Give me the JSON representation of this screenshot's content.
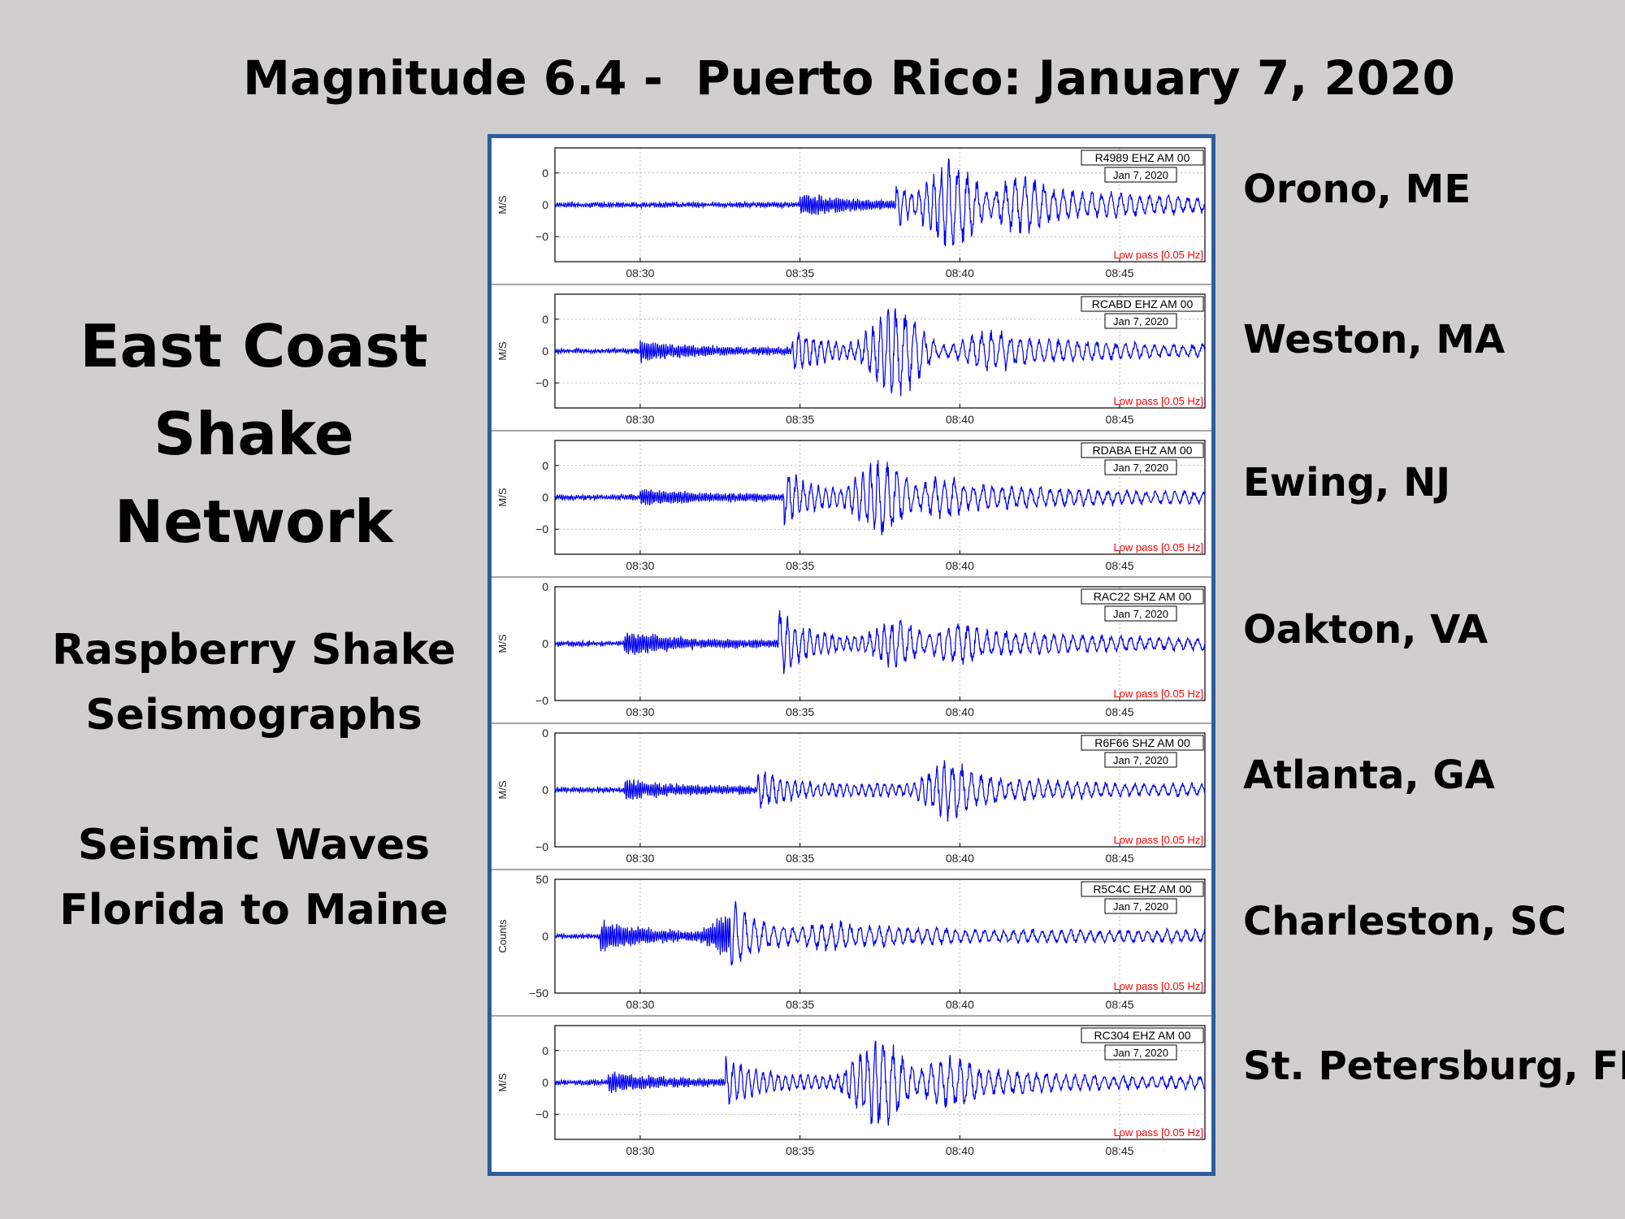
{
  "title": "Magnitude 6.4 -  Puerto Rico: January 7, 2020",
  "left_panel": {
    "network_title_lines": [
      "East Coast",
      "Shake",
      "Network"
    ],
    "subtitle1_lines": [
      "Raspberry Shake",
      "Seismographs"
    ],
    "subtitle2_lines": [
      "Seismic Waves",
      "Florida to Maine"
    ]
  },
  "colors": {
    "background": "#d0cecf",
    "frame": "#2e5d9e",
    "trace": "#0000ee",
    "filter_text": "#ff0000"
  },
  "chart_data": [
    {
      "type": "line",
      "station_label": "Orono, ME",
      "id_label": "R4989 EHZ AM 00",
      "date_label": "Jan 7, 2020",
      "filter_label": "Low pass [0.05 Hz]",
      "ylabel": "M/S",
      "yticks": [
        "0",
        "0",
        "−0"
      ],
      "xticks": [
        "08:30",
        "08:35",
        "08:40",
        "08:45"
      ],
      "x_range": [
        "08:27:20",
        "08:47:40"
      ],
      "arrivals": [
        "08:35:00",
        "08:38:00"
      ],
      "peak_times": [
        "08:39:45",
        "08:42:00"
      ],
      "amplitude_shape": [
        0.18,
        0.3,
        0.9,
        0.55,
        0.35
      ]
    },
    {
      "type": "line",
      "station_label": "Weston, MA",
      "id_label": "RCABD EHZ AM 00",
      "date_label": "Jan 7, 2020",
      "filter_label": "Low pass [0.05 Hz]",
      "ylabel": "M/S",
      "yticks": [
        "0",
        "0",
        "−0"
      ],
      "xticks": [
        "08:30",
        "08:35",
        "08:40",
        "08:45"
      ],
      "x_range": [
        "08:27:20",
        "08:47:40"
      ],
      "arrivals": [
        "08:30:00",
        "08:34:45"
      ],
      "peak_times": [
        "08:38:00",
        "08:41:00"
      ],
      "amplitude_shape": [
        0.15,
        0.35,
        0.85,
        0.4,
        0.3
      ]
    },
    {
      "type": "line",
      "station_label": "Ewing, NJ",
      "id_label": "RDABA EHZ AM 00",
      "date_label": "Jan 7, 2020",
      "filter_label": "Low pass [0.05 Hz]",
      "ylabel": "M/S",
      "yticks": [
        "0",
        "0",
        "−0"
      ],
      "xticks": [
        "08:30",
        "08:35",
        "08:40",
        "08:45"
      ],
      "x_range": [
        "08:27:20",
        "08:47:40"
      ],
      "arrivals": [
        "08:30:00",
        "08:34:30"
      ],
      "peak_times": [
        "08:37:30",
        "08:39:30"
      ],
      "amplitude_shape": [
        0.12,
        0.45,
        0.75,
        0.4,
        0.3
      ]
    },
    {
      "type": "line",
      "station_label": "Oakton, VA",
      "id_label": "RAC22 SHZ AM 00",
      "date_label": "Jan 7, 2020",
      "filter_label": "Low pass [0.05 Hz]",
      "ylabel": "M/S",
      "yticks": [
        "0",
        "0",
        "−0"
      ],
      "xticks": [
        "08:30",
        "08:35",
        "08:40",
        "08:45"
      ],
      "x_range": [
        "08:27:20",
        "08:47:40"
      ],
      "arrivals": [
        "08:29:30",
        "08:34:20"
      ],
      "peak_times": [
        "08:38:00",
        "08:40:00"
      ],
      "amplitude_shape": [
        0.2,
        0.55,
        0.45,
        0.4,
        0.3
      ]
    },
    {
      "type": "line",
      "station_label": "Atlanta, GA",
      "id_label": "R6F66 SHZ AM 00",
      "date_label": "Jan 7, 2020",
      "filter_label": "Low pass [0.05 Hz]",
      "ylabel": "M/S",
      "yticks": [
        "0",
        "0",
        "−0"
      ],
      "xticks": [
        "08:30",
        "08:35",
        "08:40",
        "08:45"
      ],
      "x_range": [
        "08:27:20",
        "08:47:40"
      ],
      "arrivals": [
        "08:29:30",
        "08:33:40"
      ],
      "peak_times": [
        "08:39:40",
        "08:40:40"
      ],
      "amplitude_shape": [
        0.15,
        0.3,
        0.55,
        0.3,
        0.25
      ]
    },
    {
      "type": "line",
      "station_label": "Charleston, SC",
      "id_label": "R5C4C EHZ AM 00",
      "date_label": "Jan 7, 2020",
      "filter_label": "Low pass [0.05 Hz]",
      "ylabel": "Counts",
      "yticks": [
        "50",
        "0",
        "−50"
      ],
      "ylim": [
        -50,
        50
      ],
      "xticks": [
        "08:30",
        "08:35",
        "08:40",
        "08:45"
      ],
      "x_range": [
        "08:27:20",
        "08:47:40"
      ],
      "arrivals": [
        "08:28:45",
        "08:32:50"
      ],
      "peak_times": [
        "08:33:00",
        "08:36:00"
      ],
      "amplitude_shape": [
        0.25,
        0.6,
        0.45,
        0.3,
        0.25
      ]
    },
    {
      "type": "line",
      "station_label": "St. Petersburg, FL",
      "id_label": "RC304 EHZ AM 00",
      "date_label": "Jan 7, 2020",
      "filter_label": "Low pass [0.05 Hz]",
      "ylabel": "M/S",
      "yticks": [
        "0",
        "0",
        "−0"
      ],
      "xticks": [
        "08:30",
        "08:35",
        "08:40",
        "08:45"
      ],
      "x_range": [
        "08:27:20",
        "08:47:40"
      ],
      "arrivals": [
        "08:29:00",
        "08:32:40"
      ],
      "peak_times": [
        "08:37:30",
        "08:39:45"
      ],
      "amplitude_shape": [
        0.15,
        0.4,
        0.9,
        0.5,
        0.3
      ]
    }
  ]
}
